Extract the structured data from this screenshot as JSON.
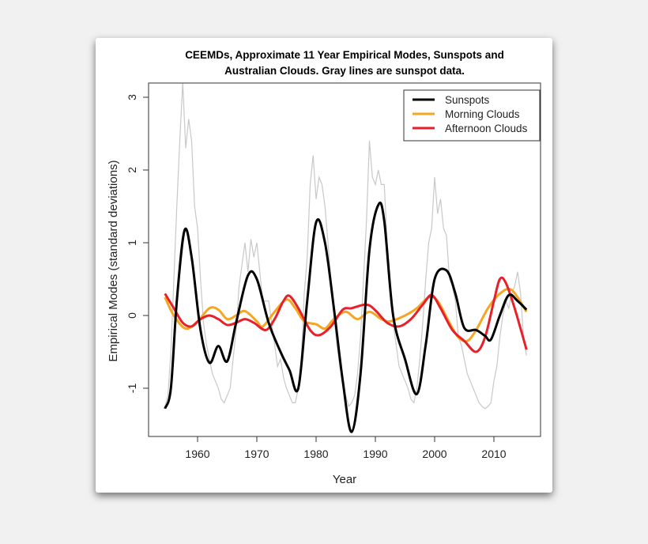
{
  "chart_data": {
    "type": "line",
    "title_line1": "CEEMDs, Approximate 11 Year Empirical Modes, Sunspots and",
    "title_line2": "Australian Clouds. Gray lines are sunspot data.",
    "xlabel": "Year",
    "ylabel": "Empirical Modes (standard deviations)",
    "xlim": [
      1952,
      2017.5
    ],
    "ylim": [
      -1.67,
      3.1
    ],
    "xticks": [
      "1960",
      "1970",
      "1980",
      "1990",
      "2000",
      "2010"
    ],
    "yticks": [
      "-1",
      "0",
      "1",
      "2",
      "3"
    ],
    "legend_position": "top-right",
    "legend": [
      {
        "name": "Sunspots",
        "color": "#000000"
      },
      {
        "name": "Morning Clouds",
        "color": "#f5a623"
      },
      {
        "name": "Afternoon Clouds",
        "color": "#e8202a"
      }
    ],
    "raw_sunspots_color": "#c8c8c8",
    "raw_sunspots": [
      [
        1954.5,
        -1.25
      ],
      [
        1955,
        -1.1
      ],
      [
        1955.5,
        -0.5
      ],
      [
        1956,
        0.5
      ],
      [
        1956.5,
        1.5
      ],
      [
        1957,
        2.4
      ],
      [
        1957.5,
        3.2
      ],
      [
        1958,
        2.3
      ],
      [
        1958.5,
        2.7
      ],
      [
        1959,
        2.4
      ],
      [
        1959.5,
        1.5
      ],
      [
        1960,
        1.2
      ],
      [
        1960.5,
        0.5
      ],
      [
        1961,
        -0.1
      ],
      [
        1961.5,
        -0.4
      ],
      [
        1962,
        -0.6
      ],
      [
        1962.5,
        -0.8
      ],
      [
        1963,
        -0.9
      ],
      [
        1963.5,
        -1.0
      ],
      [
        1964,
        -1.15
      ],
      [
        1964.5,
        -1.2
      ],
      [
        1965,
        -1.1
      ],
      [
        1965.5,
        -1.0
      ],
      [
        1966,
        -0.6
      ],
      [
        1966.5,
        -0.2
      ],
      [
        1967,
        0.4
      ],
      [
        1967.5,
        0.7
      ],
      [
        1968,
        1.0
      ],
      [
        1968.5,
        0.6
      ],
      [
        1969,
        1.05
      ],
      [
        1969.5,
        0.8
      ],
      [
        1970,
        1.0
      ],
      [
        1970.5,
        0.6
      ],
      [
        1971,
        0.2
      ],
      [
        1971.5,
        0.2
      ],
      [
        1972,
        0.2
      ],
      [
        1972.5,
        -0.1
      ],
      [
        1973,
        -0.4
      ],
      [
        1973.5,
        -0.7
      ],
      [
        1974,
        -0.6
      ],
      [
        1974.5,
        -0.85
      ],
      [
        1975,
        -1.0
      ],
      [
        1975.5,
        -1.1
      ],
      [
        1976,
        -1.2
      ],
      [
        1976.5,
        -1.2
      ],
      [
        1977,
        -1.0
      ],
      [
        1977.5,
        -0.6
      ],
      [
        1978,
        0.3
      ],
      [
        1978.5,
        0.8
      ],
      [
        1979,
        1.8
      ],
      [
        1979.5,
        2.2
      ],
      [
        1980,
        1.6
      ],
      [
        1980.5,
        1.9
      ],
      [
        1981,
        1.8
      ],
      [
        1981.5,
        1.5
      ],
      [
        1982,
        1.0
      ],
      [
        1982.5,
        0.5
      ],
      [
        1983,
        0.0
      ],
      [
        1983.5,
        -0.4
      ],
      [
        1984,
        -0.7
      ],
      [
        1984.5,
        -0.9
      ],
      [
        1985,
        -1.1
      ],
      [
        1985.5,
        -1.25
      ],
      [
        1986,
        -1.2
      ],
      [
        1986.5,
        -1.1
      ],
      [
        1987,
        -0.8
      ],
      [
        1987.5,
        -0.3
      ],
      [
        1988,
        0.5
      ],
      [
        1988.5,
        1.3
      ],
      [
        1989,
        2.4
      ],
      [
        1989.5,
        1.9
      ],
      [
        1990,
        1.8
      ],
      [
        1990.5,
        2.0
      ],
      [
        1991,
        1.8
      ],
      [
        1991.5,
        1.8
      ],
      [
        1992,
        1.0
      ],
      [
        1992.5,
        0.5
      ],
      [
        1993,
        -0.1
      ],
      [
        1993.5,
        -0.4
      ],
      [
        1994,
        -0.7
      ],
      [
        1994.5,
        -0.8
      ],
      [
        1995,
        -0.9
      ],
      [
        1995.5,
        -1.0
      ],
      [
        1996,
        -1.15
      ],
      [
        1996.5,
        -1.2
      ],
      [
        1997,
        -1.0
      ],
      [
        1997.5,
        -0.6
      ],
      [
        1998,
        -0.1
      ],
      [
        1998.5,
        0.5
      ],
      [
        1999,
        1.0
      ],
      [
        1999.5,
        1.2
      ],
      [
        2000,
        1.9
      ],
      [
        2000.5,
        1.4
      ],
      [
        2001,
        1.6
      ],
      [
        2001.5,
        1.2
      ],
      [
        2002,
        1.1
      ],
      [
        2002.5,
        0.5
      ],
      [
        2003,
        0.4
      ],
      [
        2003.5,
        0.2
      ],
      [
        2004,
        -0.3
      ],
      [
        2004.5,
        -0.4
      ],
      [
        2005,
        -0.6
      ],
      [
        2005.5,
        -0.8
      ],
      [
        2006,
        -0.9
      ],
      [
        2006.5,
        -1.0
      ],
      [
        2007,
        -1.1
      ],
      [
        2007.5,
        -1.2
      ],
      [
        2008,
        -1.25
      ],
      [
        2008.5,
        -1.28
      ],
      [
        2009,
        -1.25
      ],
      [
        2009.5,
        -1.2
      ],
      [
        2010,
        -0.9
      ],
      [
        2010.5,
        -0.7
      ],
      [
        2011,
        -0.3
      ],
      [
        2011.5,
        0.0
      ],
      [
        2012,
        0.2
      ],
      [
        2012.5,
        0.1
      ],
      [
        2013,
        0.3
      ],
      [
        2013.5,
        0.4
      ],
      [
        2014,
        0.6
      ],
      [
        2014.5,
        0.3
      ],
      [
        2015,
        -0.3
      ],
      [
        2015.5,
        -0.55
      ]
    ],
    "series": [
      {
        "name": "Sunspots",
        "color": "#000000",
        "points": [
          [
            1954.5,
            -1.28
          ],
          [
            1955.5,
            -1.0
          ],
          [
            1956.5,
            0.2
          ],
          [
            1957.8,
            1.17
          ],
          [
            1959,
            0.8
          ],
          [
            1960.5,
            -0.2
          ],
          [
            1962,
            -0.65
          ],
          [
            1963.5,
            -0.42
          ],
          [
            1965,
            -0.63
          ],
          [
            1966.5,
            -0.1
          ],
          [
            1968.5,
            0.55
          ],
          [
            1970,
            0.5
          ],
          [
            1972,
            -0.1
          ],
          [
            1974,
            -0.5
          ],
          [
            1975.5,
            -0.75
          ],
          [
            1977,
            -1.0
          ],
          [
            1978.5,
            0.2
          ],
          [
            1980,
            1.28
          ],
          [
            1981.5,
            1.0
          ],
          [
            1983,
            0.1
          ],
          [
            1984.5,
            -0.9
          ],
          [
            1986,
            -1.6
          ],
          [
            1987.5,
            -0.8
          ],
          [
            1989,
            0.9
          ],
          [
            1990.5,
            1.52
          ],
          [
            1991.5,
            1.3
          ],
          [
            1993,
            0.0
          ],
          [
            1995,
            -0.6
          ],
          [
            1997,
            -1.08
          ],
          [
            1998.5,
            -0.4
          ],
          [
            2000,
            0.5
          ],
          [
            2002,
            0.62
          ],
          [
            2003.5,
            0.3
          ],
          [
            2005,
            -0.17
          ],
          [
            2007,
            -0.2
          ],
          [
            2008.5,
            -0.28
          ],
          [
            2009.5,
            -0.33
          ],
          [
            2011,
            0.0
          ],
          [
            2012.5,
            0.28
          ],
          [
            2014,
            0.2
          ],
          [
            2015.5,
            0.08
          ]
        ]
      },
      {
        "name": "Morning Clouds",
        "color": "#f5a623",
        "points": [
          [
            1954.5,
            0.25
          ],
          [
            1956,
            0.0
          ],
          [
            1958,
            -0.18
          ],
          [
            1960,
            -0.08
          ],
          [
            1962,
            0.1
          ],
          [
            1963.5,
            0.08
          ],
          [
            1965,
            -0.05
          ],
          [
            1966.5,
            0.0
          ],
          [
            1968,
            0.06
          ],
          [
            1970,
            -0.08
          ],
          [
            1971,
            -0.15
          ],
          [
            1973,
            0.05
          ],
          [
            1975,
            0.22
          ],
          [
            1976.5,
            0.1
          ],
          [
            1978,
            -0.08
          ],
          [
            1980,
            -0.12
          ],
          [
            1981.5,
            -0.18
          ],
          [
            1983,
            -0.05
          ],
          [
            1985,
            0.05
          ],
          [
            1987,
            -0.05
          ],
          [
            1989,
            0.05
          ],
          [
            1991,
            -0.05
          ],
          [
            1992.5,
            -0.08
          ],
          [
            1995,
            0.0
          ],
          [
            1997,
            0.1
          ],
          [
            1999,
            0.25
          ],
          [
            2000.5,
            0.2
          ],
          [
            2002.5,
            -0.1
          ],
          [
            2004,
            -0.3
          ],
          [
            2005.5,
            -0.35
          ],
          [
            2007,
            -0.2
          ],
          [
            2009,
            0.1
          ],
          [
            2011,
            0.3
          ],
          [
            2013,
            0.35
          ],
          [
            2015.5,
            0.05
          ]
        ]
      },
      {
        "name": "Afternoon Clouds",
        "color": "#e8202a",
        "points": [
          [
            1954.5,
            0.3
          ],
          [
            1956,
            0.1
          ],
          [
            1957.5,
            -0.1
          ],
          [
            1959,
            -0.15
          ],
          [
            1960.5,
            -0.05
          ],
          [
            1962,
            0.0
          ],
          [
            1963.5,
            -0.05
          ],
          [
            1965,
            -0.13
          ],
          [
            1966.5,
            -0.1
          ],
          [
            1968,
            -0.05
          ],
          [
            1969.5,
            -0.1
          ],
          [
            1971.5,
            -0.2
          ],
          [
            1973,
            -0.05
          ],
          [
            1974.5,
            0.2
          ],
          [
            1975.5,
            0.27
          ],
          [
            1977,
            0.1
          ],
          [
            1979,
            -0.2
          ],
          [
            1980.5,
            -0.27
          ],
          [
            1982.5,
            -0.15
          ],
          [
            1984.5,
            0.08
          ],
          [
            1986,
            0.1
          ],
          [
            1988.5,
            0.15
          ],
          [
            1990,
            0.07
          ],
          [
            1992,
            -0.1
          ],
          [
            1994,
            -0.15
          ],
          [
            1996,
            -0.05
          ],
          [
            1998,
            0.15
          ],
          [
            1999.5,
            0.28
          ],
          [
            2001,
            0.1
          ],
          [
            2003,
            -0.2
          ],
          [
            2005,
            -0.35
          ],
          [
            2007,
            -0.5
          ],
          [
            2008.5,
            -0.3
          ],
          [
            2010,
            0.2
          ],
          [
            2011,
            0.5
          ],
          [
            2012,
            0.45
          ],
          [
            2013.5,
            0.1
          ],
          [
            2015.5,
            -0.47
          ]
        ]
      }
    ]
  }
}
